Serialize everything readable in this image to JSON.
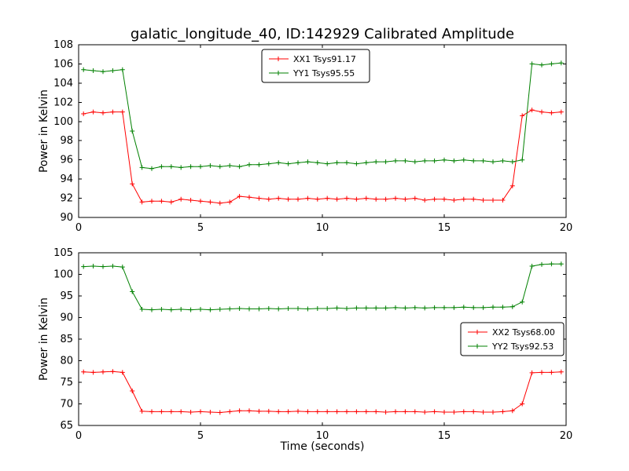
{
  "figure": {
    "background": "#ffffff",
    "frame_color": "#000000"
  },
  "chart_data": [
    {
      "type": "line",
      "title": "galatic_longitude_40, ID:142929 Calibrated Amplitude",
      "xlabel": "",
      "ylabel": "Power in Kelvin",
      "xlim": [
        0,
        20
      ],
      "ylim": [
        90,
        108
      ],
      "xticks": [
        0,
        5,
        10,
        15,
        20
      ],
      "yticks": [
        90,
        92,
        94,
        96,
        98,
        100,
        102,
        104,
        106,
        108
      ],
      "grid": false,
      "legend_position": "upper center",
      "x": [
        0.2,
        0.6,
        1.0,
        1.4,
        1.8,
        2.2,
        2.6,
        3.0,
        3.4,
        3.8,
        4.2,
        4.6,
        5.0,
        5.4,
        5.8,
        6.2,
        6.6,
        7.0,
        7.4,
        7.8,
        8.2,
        8.6,
        9.0,
        9.4,
        9.8,
        10.2,
        10.6,
        11.0,
        11.4,
        11.8,
        12.2,
        12.6,
        13.0,
        13.4,
        13.8,
        14.2,
        14.6,
        15.0,
        15.4,
        15.8,
        16.2,
        16.6,
        17.0,
        17.4,
        17.8,
        18.2,
        18.6,
        19.0,
        19.4,
        19.8
      ],
      "series": [
        {
          "name": "XX1 Tsys91.17",
          "color": "#ff0000",
          "marker": "+",
          "values": [
            100.8,
            101.0,
            100.9,
            101.0,
            101.0,
            93.5,
            91.6,
            91.7,
            91.7,
            91.6,
            91.9,
            91.8,
            91.7,
            91.6,
            91.5,
            91.6,
            92.2,
            92.1,
            92.0,
            91.9,
            92.0,
            91.9,
            91.9,
            92.0,
            91.9,
            92.0,
            91.9,
            92.0,
            91.9,
            92.0,
            91.9,
            91.9,
            92.0,
            91.9,
            92.0,
            91.8,
            91.9,
            91.9,
            91.8,
            91.9,
            91.9,
            91.8,
            91.8,
            91.8,
            93.3,
            100.6,
            101.2,
            101.0,
            100.9,
            101.0
          ]
        },
        {
          "name": "YY1 Tsys95.55",
          "color": "#008000",
          "marker": "+",
          "values": [
            105.4,
            105.3,
            105.2,
            105.3,
            105.4,
            99.0,
            95.2,
            95.1,
            95.3,
            95.3,
            95.2,
            95.3,
            95.3,
            95.4,
            95.3,
            95.4,
            95.3,
            95.5,
            95.5,
            95.6,
            95.7,
            95.6,
            95.7,
            95.8,
            95.7,
            95.6,
            95.7,
            95.7,
            95.6,
            95.7,
            95.8,
            95.8,
            95.9,
            95.9,
            95.8,
            95.9,
            95.9,
            96.0,
            95.9,
            96.0,
            95.9,
            95.9,
            95.8,
            95.9,
            95.8,
            96.0,
            106.0,
            105.9,
            106.0,
            106.1
          ]
        }
      ]
    },
    {
      "type": "line",
      "title": "",
      "xlabel": "Time (seconds)",
      "ylabel": "Power in Kelvin",
      "xlim": [
        0,
        20
      ],
      "ylim": [
        65,
        105
      ],
      "xticks": [
        0,
        5,
        10,
        15,
        20
      ],
      "yticks": [
        65,
        70,
        75,
        80,
        85,
        90,
        95,
        100,
        105
      ],
      "grid": false,
      "legend_position": "center right",
      "x": [
        0.2,
        0.6,
        1.0,
        1.4,
        1.8,
        2.2,
        2.6,
        3.0,
        3.4,
        3.8,
        4.2,
        4.6,
        5.0,
        5.4,
        5.8,
        6.2,
        6.6,
        7.0,
        7.4,
        7.8,
        8.2,
        8.6,
        9.0,
        9.4,
        9.8,
        10.2,
        10.6,
        11.0,
        11.4,
        11.8,
        12.2,
        12.6,
        13.0,
        13.4,
        13.8,
        14.2,
        14.6,
        15.0,
        15.4,
        15.8,
        16.2,
        16.6,
        17.0,
        17.4,
        17.8,
        18.2,
        18.6,
        19.0,
        19.4,
        19.8
      ],
      "series": [
        {
          "name": "XX2 Tsys68.00",
          "color": "#ff0000",
          "marker": "+",
          "values": [
            77.4,
            77.3,
            77.4,
            77.5,
            77.3,
            73.0,
            68.3,
            68.2,
            68.2,
            68.2,
            68.2,
            68.1,
            68.2,
            68.1,
            68.0,
            68.2,
            68.4,
            68.4,
            68.3,
            68.3,
            68.2,
            68.2,
            68.3,
            68.2,
            68.2,
            68.2,
            68.2,
            68.2,
            68.2,
            68.2,
            68.2,
            68.1,
            68.2,
            68.2,
            68.2,
            68.1,
            68.2,
            68.1,
            68.1,
            68.2,
            68.2,
            68.1,
            68.1,
            68.2,
            68.4,
            70.0,
            77.2,
            77.3,
            77.3,
            77.4
          ]
        },
        {
          "name": "YY2 Tsys92.53",
          "color": "#008000",
          "marker": "+",
          "values": [
            101.8,
            101.9,
            101.8,
            101.9,
            101.7,
            96.0,
            91.9,
            91.8,
            91.9,
            91.8,
            91.9,
            91.8,
            91.9,
            91.8,
            91.9,
            92.0,
            92.1,
            92.0,
            92.0,
            92.1,
            92.0,
            92.1,
            92.1,
            92.0,
            92.1,
            92.1,
            92.2,
            92.1,
            92.2,
            92.2,
            92.2,
            92.2,
            92.3,
            92.2,
            92.3,
            92.2,
            92.3,
            92.3,
            92.3,
            92.4,
            92.3,
            92.3,
            92.4,
            92.4,
            92.5,
            93.6,
            101.9,
            102.3,
            102.4,
            102.4
          ]
        }
      ]
    }
  ]
}
